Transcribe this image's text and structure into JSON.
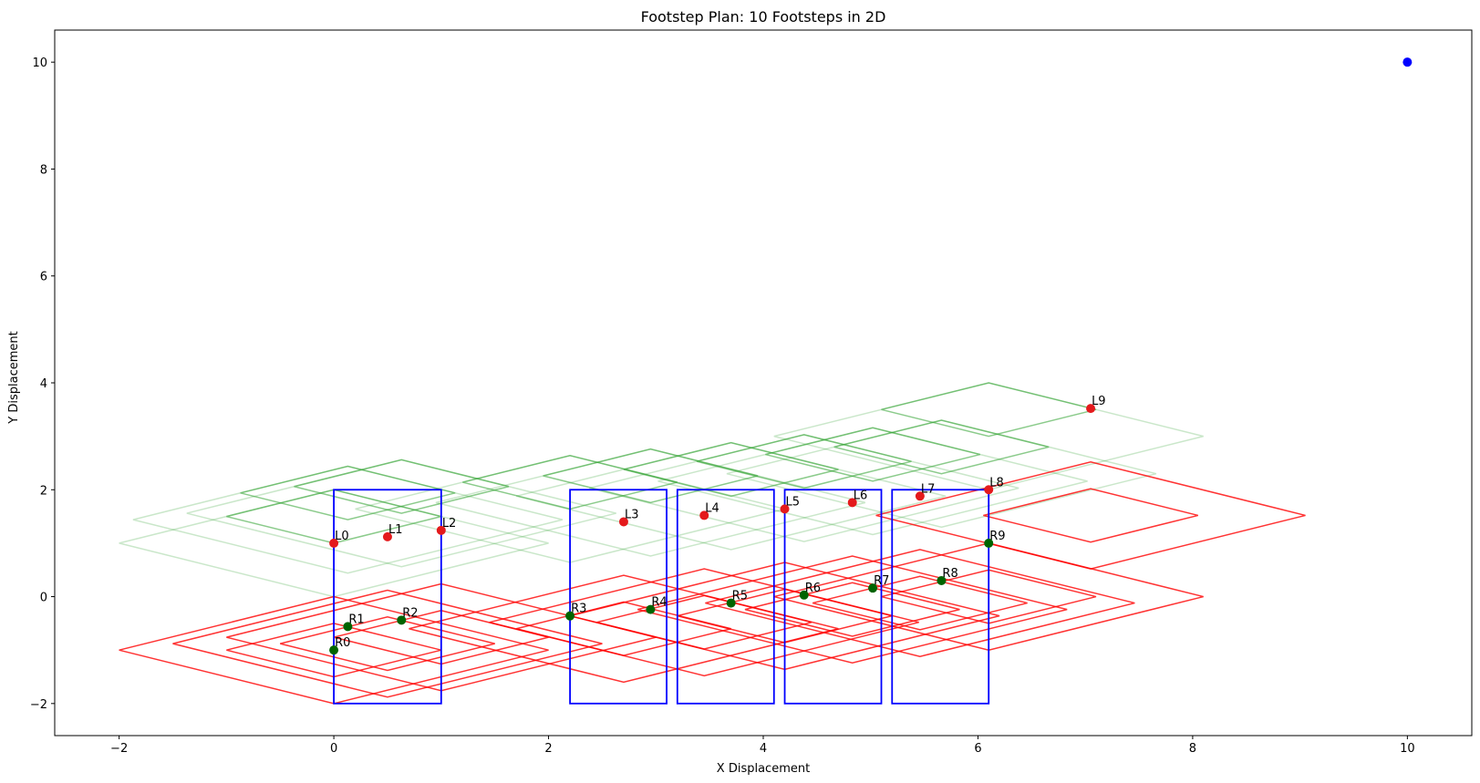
{
  "chart_data": {
    "type": "scatter",
    "title": "Footstep Plan: 10 Footsteps in 2D",
    "xlabel": "X Displacement",
    "ylabel": "Y Displacement",
    "xlim": [
      -2.6,
      10.6
    ],
    "ylim": [
      -2.6,
      10.6
    ],
    "xticks": [
      -2,
      0,
      2,
      4,
      6,
      8,
      10
    ],
    "yticks": [
      -2,
      0,
      2,
      4,
      6,
      8,
      10
    ],
    "grid": false,
    "legend": "none",
    "colors": {
      "left_foot": "#e41a1c",
      "right_foot": "#006400",
      "goal": "#0000ff",
      "region": "#0000ff",
      "left_reach": "#2ca02c",
      "right_reach": "#ff0000"
    },
    "goal": {
      "x": 10,
      "y": 10
    },
    "left_steps": [
      {
        "label": "L0",
        "x": 0.0,
        "y": 1.0
      },
      {
        "label": "L1",
        "x": 0.5,
        "y": 1.12
      },
      {
        "label": "L2",
        "x": 1.0,
        "y": 1.24
      },
      {
        "label": "L3",
        "x": 2.7,
        "y": 1.4
      },
      {
        "label": "L4",
        "x": 3.45,
        "y": 1.52
      },
      {
        "label": "L5",
        "x": 4.2,
        "y": 1.64
      },
      {
        "label": "L6",
        "x": 4.83,
        "y": 1.76
      },
      {
        "label": "L7",
        "x": 5.46,
        "y": 1.88
      },
      {
        "label": "L8",
        "x": 6.1,
        "y": 2.0
      },
      {
        "label": "L9",
        "x": 7.05,
        "y": 3.52
      }
    ],
    "right_steps": [
      {
        "label": "R0",
        "x": 0.0,
        "y": -1.0
      },
      {
        "label": "R1",
        "x": 0.13,
        "y": -0.56
      },
      {
        "label": "R2",
        "x": 0.63,
        "y": -0.44
      },
      {
        "label": "R3",
        "x": 2.2,
        "y": -0.36
      },
      {
        "label": "R4",
        "x": 2.95,
        "y": -0.24
      },
      {
        "label": "R5",
        "x": 3.7,
        "y": -0.12
      },
      {
        "label": "R6",
        "x": 4.38,
        "y": 0.03
      },
      {
        "label": "R7",
        "x": 5.02,
        "y": 0.16
      },
      {
        "label": "R8",
        "x": 5.66,
        "y": 0.3
      },
      {
        "label": "R9",
        "x": 6.1,
        "y": 1.0
      }
    ],
    "safe_regions": [
      {
        "x0": 0.0,
        "x1": 1.0,
        "y0": -2,
        "y1": 2
      },
      {
        "x0": 2.2,
        "x1": 3.1,
        "y0": -2,
        "y1": 2
      },
      {
        "x0": 3.2,
        "x1": 4.1,
        "y0": -2,
        "y1": 2
      },
      {
        "x0": 4.2,
        "x1": 5.1,
        "y0": -2,
        "y1": 2
      },
      {
        "x0": 5.2,
        "x1": 6.1,
        "y0": -2,
        "y1": 2
      }
    ],
    "reach_regions": {
      "left_outer": {
        "half_width": 2.0,
        "half_height": 1.0,
        "offset_y": 0.0
      },
      "left_inner": {
        "half_width": 1.0,
        "half_height": 0.5,
        "offset_y": 0.5
      },
      "right_outer": {
        "half_width": 2.0,
        "half_height": 1.0,
        "offset_y": 0.0
      },
      "right_inner": {
        "half_width": 1.0,
        "half_height": 0.5,
        "offset_y": -0.5
      }
    }
  }
}
